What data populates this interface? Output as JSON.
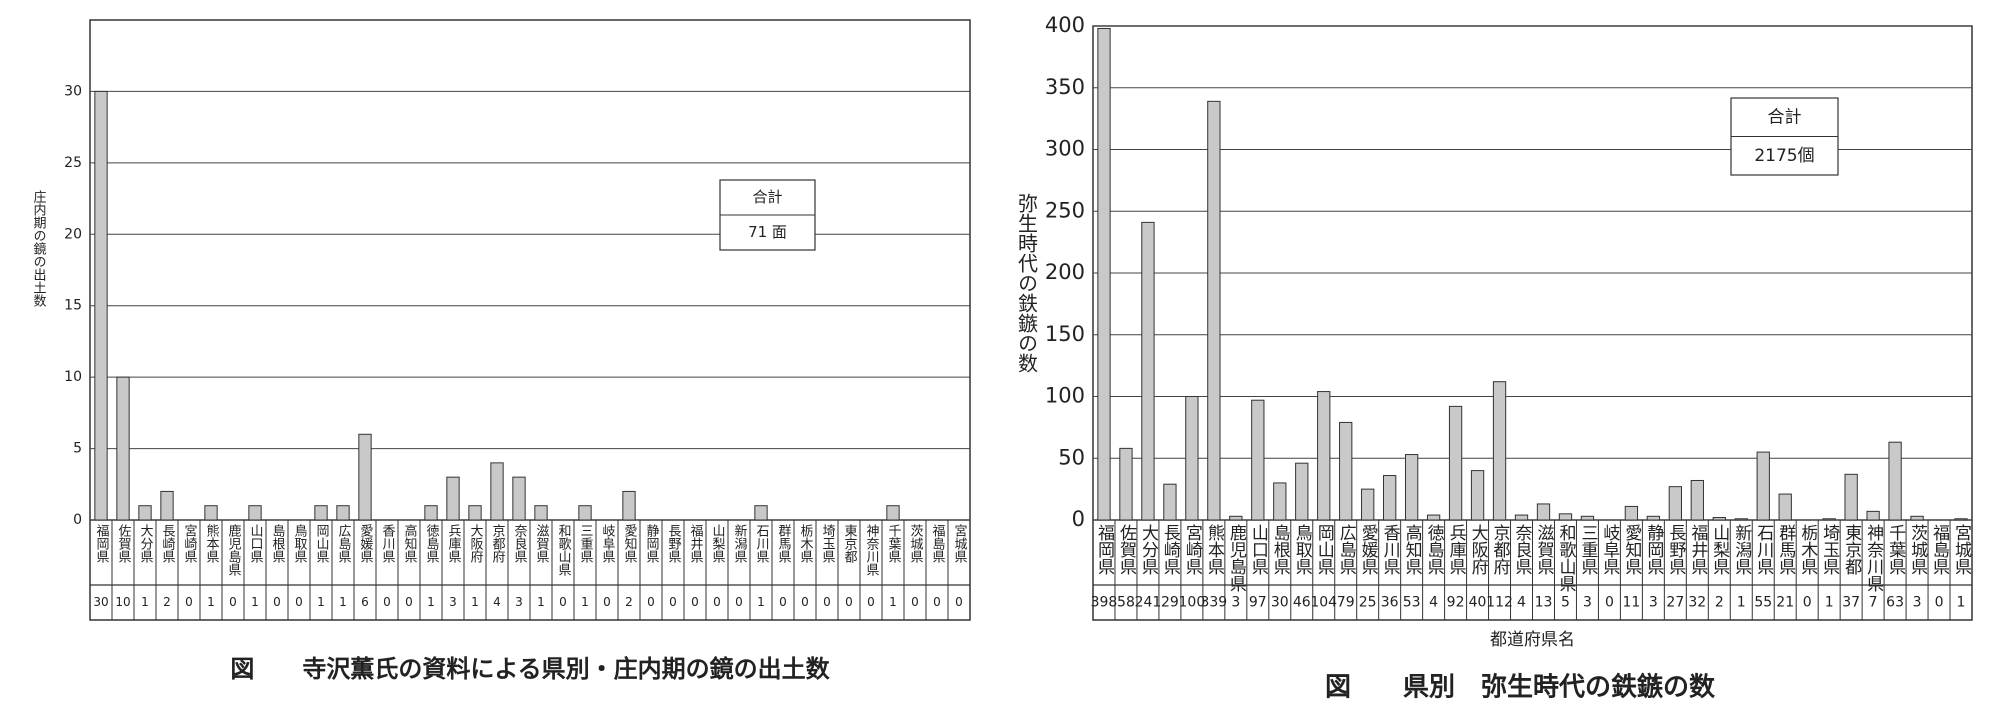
{
  "chart_data": [
    {
      "type": "bar",
      "y_label": "庄内期の鏡の出土数",
      "caption": "図　　寺沢薫氏の資料による県別・庄内期の鏡の出土数",
      "total_box": {
        "label": "合計",
        "value": "71 面"
      },
      "categories": [
        "福岡県",
        "佐賀県",
        "大分県",
        "長崎県",
        "宮崎県",
        "熊本県",
        "鹿児島県",
        "山口県",
        "島根県",
        "鳥取県",
        "岡山県",
        "広島県",
        "愛媛県",
        "香川県",
        "高知県",
        "徳島県",
        "兵庫県",
        "大阪府",
        "京都府",
        "奈良県",
        "滋賀県",
        "和歌山県",
        "三重県",
        "岐阜県",
        "愛知県",
        "静岡県",
        "長野県",
        "福井県",
        "山梨県",
        "新潟県",
        "石川県",
        "群馬県",
        "栃木県",
        "埼玉県",
        "東京都",
        "神奈川県",
        "千葉県",
        "茨城県",
        "福島県",
        "宮城県"
      ],
      "values": [
        30,
        10,
        1,
        2,
        0,
        1,
        0,
        1,
        0,
        0,
        1,
        1,
        6,
        0,
        0,
        1,
        3,
        1,
        4,
        3,
        1,
        0,
        1,
        0,
        2,
        0,
        0,
        0,
        0,
        0,
        1,
        0,
        0,
        0,
        0,
        0,
        1,
        0,
        0,
        0
      ],
      "color": "#c9c9c9",
      "ylim": [
        0,
        35
      ],
      "yticks": [
        0,
        5,
        10,
        15,
        20,
        25,
        30
      ],
      "grid": true
    },
    {
      "type": "bar",
      "y_label": "弥生時代の鉄鏃の数",
      "x_label": "都道府県名",
      "caption": "図　　県別　弥生時代の鉄鏃の数",
      "total_box": {
        "label": "合計",
        "value": "2175個"
      },
      "categories": [
        "福岡県",
        "佐賀県",
        "大分県",
        "長崎県",
        "宮崎県",
        "熊本県",
        "鹿児島県",
        "山口県",
        "島根県",
        "鳥取県",
        "岡山県",
        "広島県",
        "愛媛県",
        "香川県",
        "高知県",
        "徳島県",
        "兵庫県",
        "大阪府",
        "京都府",
        "奈良県",
        "滋賀県",
        "和歌山県",
        "三重県",
        "岐阜県",
        "愛知県",
        "静岡県",
        "長野県",
        "福井県",
        "山梨県",
        "新潟県",
        "石川県",
        "群馬県",
        "栃木県",
        "埼玉県",
        "東京都",
        "神奈川県",
        "千葉県",
        "茨城県",
        "福島県",
        "宮城県"
      ],
      "values": [
        398,
        58,
        241,
        29,
        100,
        339,
        3,
        97,
        30,
        46,
        104,
        79,
        25,
        36,
        53,
        4,
        92,
        40,
        112,
        4,
        13,
        5,
        3,
        0,
        11,
        3,
        27,
        32,
        2,
        1,
        55,
        21,
        0,
        1,
        37,
        7,
        63,
        3,
        0,
        1
      ],
      "color": "#c9c9c9",
      "ylim": [
        0,
        400
      ],
      "yticks": [
        0,
        50,
        100,
        150,
        200,
        250,
        300,
        350,
        400
      ],
      "grid": true
    }
  ]
}
